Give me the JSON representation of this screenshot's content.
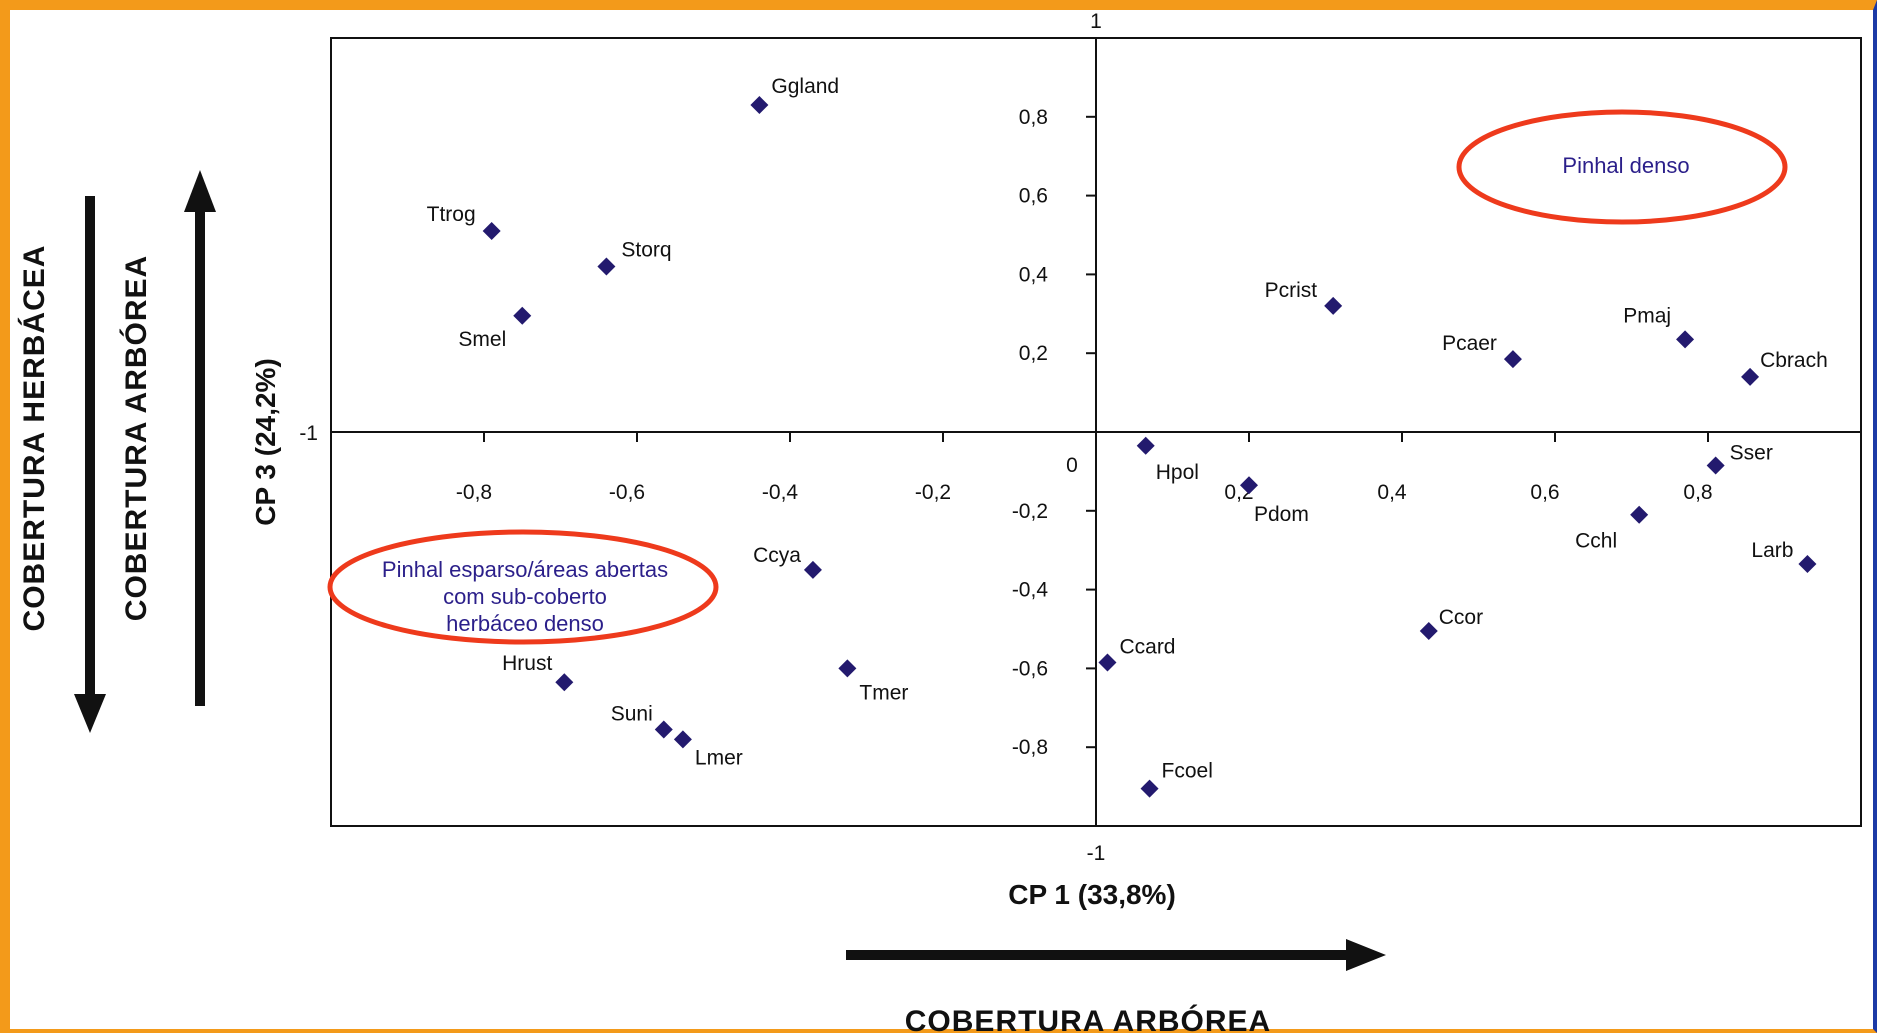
{
  "chart_data": {
    "type": "scatter",
    "xlabel": "CP 1 (33,8%)",
    "ylabel": "CP 3 (24,2%)",
    "xlim": [
      -1,
      1
    ],
    "ylim": [
      -1,
      1
    ],
    "x_ticks": [
      -0.8,
      -0.6,
      -0.4,
      -0.2,
      0,
      0.2,
      0.4,
      0.6,
      0.8
    ],
    "y_ticks": [
      -0.8,
      -0.6,
      -0.4,
      -0.2,
      0.2,
      0.4,
      0.6,
      0.8
    ],
    "x_tick_labels": [
      "-0,8",
      "-0,6",
      "-0,4",
      "-0,2",
      "0",
      "0,2",
      "0,4",
      "0,6",
      "0,8"
    ],
    "y_tick_labels": [
      "-0,8",
      "-0,6",
      "-0,4",
      "-0,2",
      "0,2",
      "0,4",
      "0,6",
      "0,8"
    ],
    "axis_end_labels": {
      "top": "1",
      "bottom": "-1",
      "left": "-1"
    },
    "marker_color": "#231a6e",
    "points": [
      {
        "label": "Ggland",
        "x": -0.44,
        "y": 0.83
      },
      {
        "label": "Ttrog",
        "x": -0.79,
        "y": 0.51
      },
      {
        "label": "Storq",
        "x": -0.64,
        "y": 0.42
      },
      {
        "label": "Smel",
        "x": -0.75,
        "y": 0.295
      },
      {
        "label": "Pcrist",
        "x": 0.31,
        "y": 0.32
      },
      {
        "label": "Pcaer",
        "x": 0.545,
        "y": 0.185
      },
      {
        "label": "Pmaj",
        "x": 0.77,
        "y": 0.235
      },
      {
        "label": "Cbrach",
        "x": 0.855,
        "y": 0.14
      },
      {
        "label": "Hpol",
        "x": 0.065,
        "y": -0.035
      },
      {
        "label": "Pdom",
        "x": 0.2,
        "y": -0.135
      },
      {
        "label": "Sser",
        "x": 0.81,
        "y": -0.085
      },
      {
        "label": "Cchl",
        "x": 0.71,
        "y": -0.21
      },
      {
        "label": "Larb",
        "x": 0.93,
        "y": -0.335
      },
      {
        "label": "Ccor",
        "x": 0.435,
        "y": -0.505
      },
      {
        "label": "Ccard",
        "x": 0.015,
        "y": -0.585
      },
      {
        "label": "Fcoel",
        "x": 0.07,
        "y": -0.905
      },
      {
        "label": "Ccya",
        "x": -0.37,
        "y": -0.35
      },
      {
        "label": "Tmer",
        "x": -0.325,
        "y": -0.6
      },
      {
        "label": "Hrust",
        "x": -0.695,
        "y": -0.635
      },
      {
        "label": "Suni",
        "x": -0.565,
        "y": -0.755
      },
      {
        "label": "Lmer",
        "x": -0.54,
        "y": -0.78
      }
    ]
  },
  "annotations": {
    "dense": {
      "text": "Pinhal denso",
      "ellipse_color": "#ee3a1c"
    },
    "sparse": {
      "lines": [
        "Pinhal esparso/áreas abertas",
        "com sub-coberto",
        "herbáceo denso"
      ],
      "ellipse_color": "#ee3a1c"
    }
  },
  "side_labels": {
    "herb": "COBERTURA HERBÁCEA",
    "arb_left": "COBERTURA ARBÓREA",
    "arb_bottom": "COBERTURA ARBÓREA"
  },
  "colors": {
    "frame": "#f39a1a",
    "outer": "#1c3aa6",
    "annotation_text": "#2b1f8a"
  }
}
